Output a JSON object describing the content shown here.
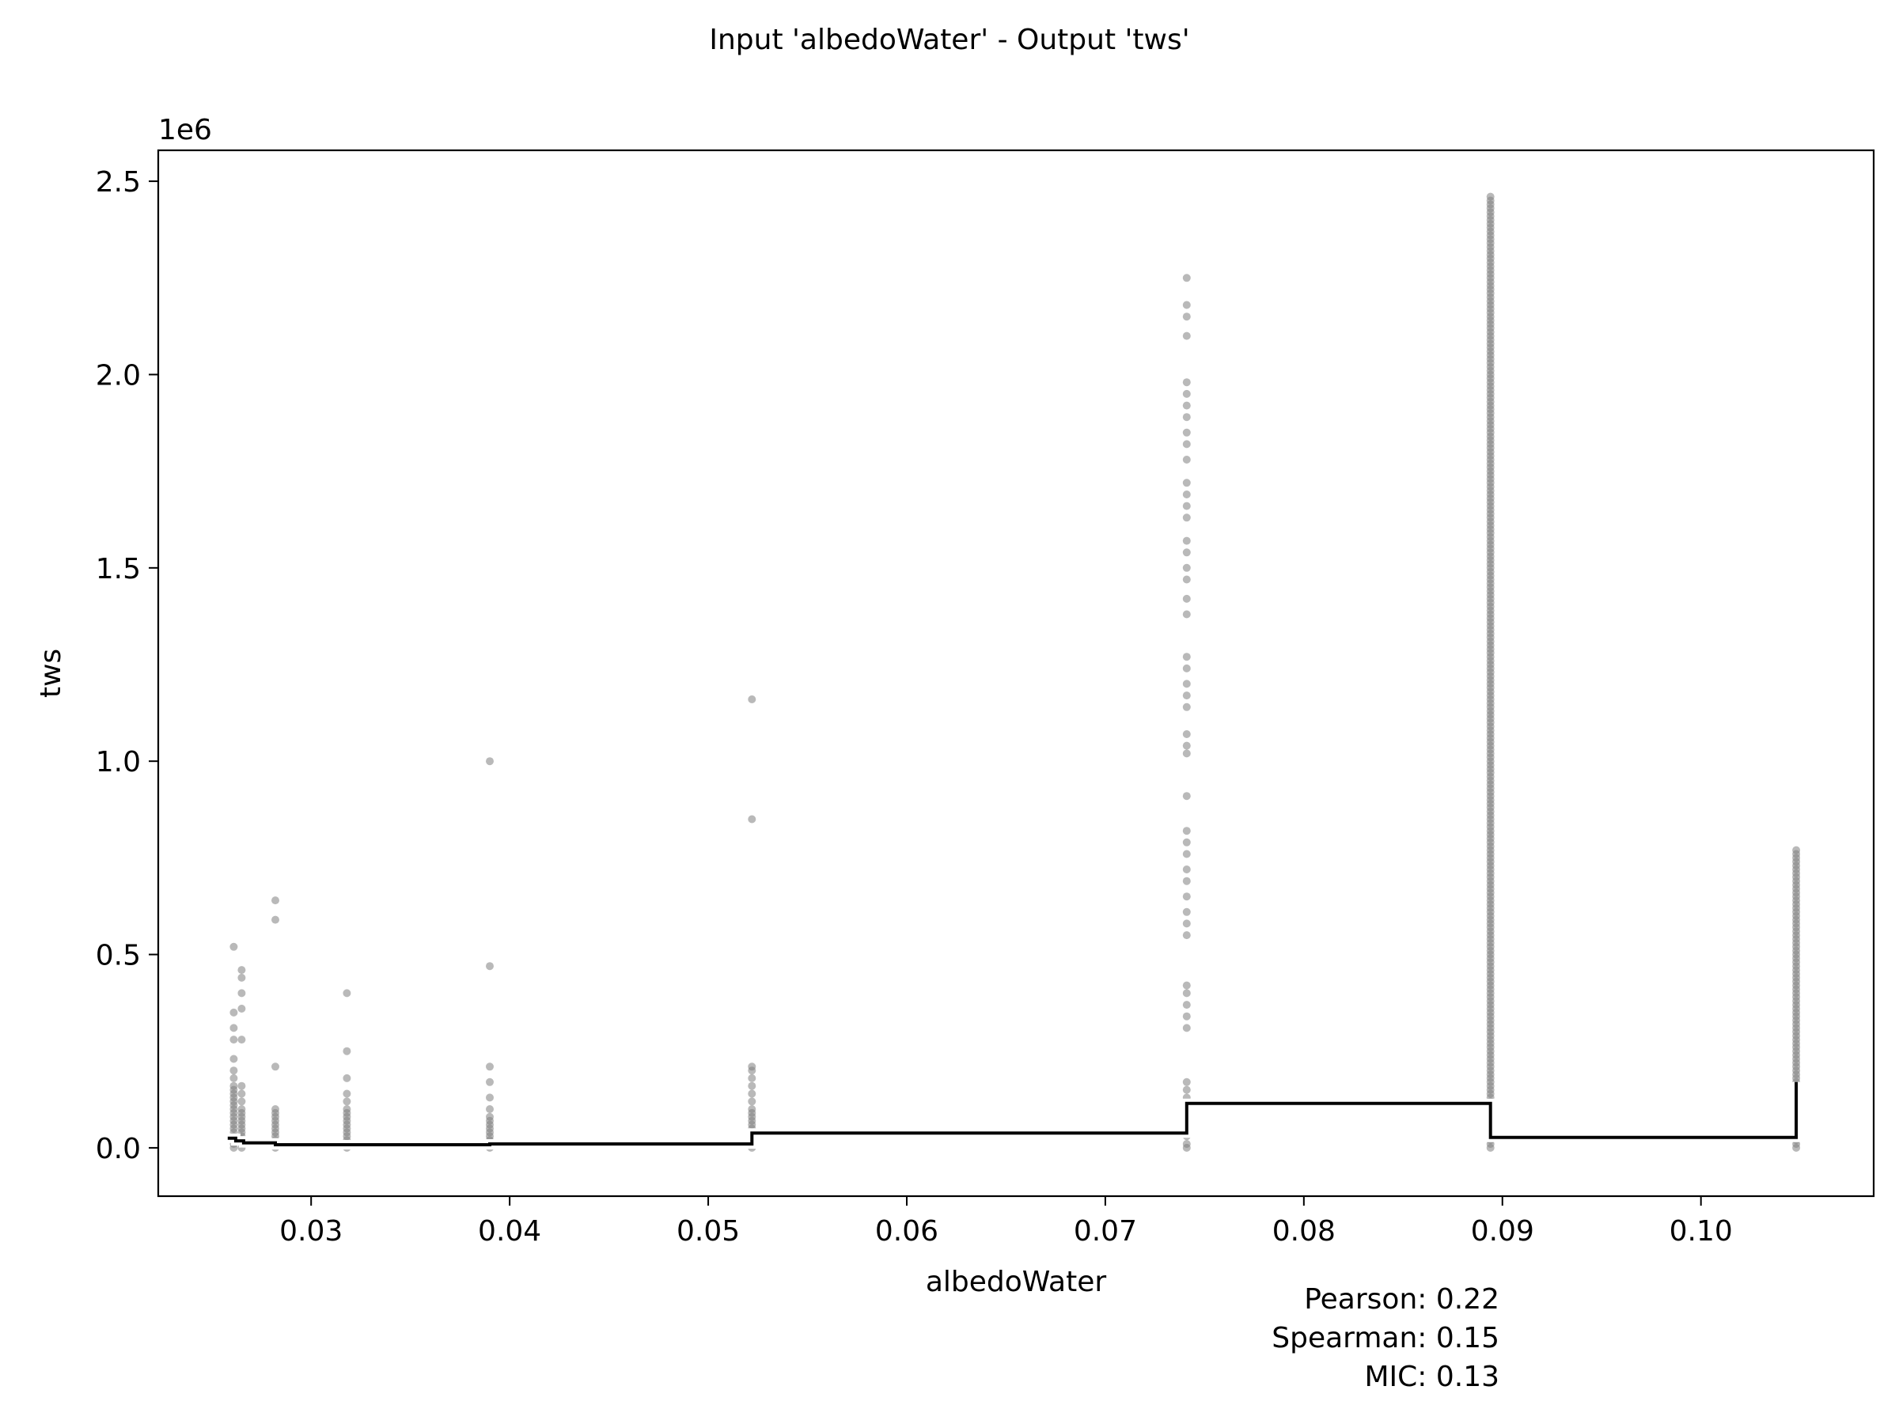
{
  "chart_data": {
    "type": "scatter",
    "title": "Input 'albedoWater' - Output 'tws'",
    "xlabel": "albedoWater",
    "ylabel": "tws",
    "y_offset_label": "1e6",
    "xlim": [
      0.0223,
      0.1087
    ],
    "ylim": [
      -0.125,
      2.58
    ],
    "x_ticks": [
      {
        "value": 0.03,
        "label": "0.03"
      },
      {
        "value": 0.04,
        "label": "0.04"
      },
      {
        "value": 0.05,
        "label": "0.05"
      },
      {
        "value": 0.06,
        "label": "0.06"
      },
      {
        "value": 0.07,
        "label": "0.07"
      },
      {
        "value": 0.08,
        "label": "0.08"
      },
      {
        "value": 0.09,
        "label": "0.09"
      },
      {
        "value": 0.1,
        "label": "0.10"
      }
    ],
    "y_ticks": [
      {
        "value": 0.0,
        "label": "0.0"
      },
      {
        "value": 0.5,
        "label": "0.5"
      },
      {
        "value": 1.0,
        "label": "1.0"
      },
      {
        "value": 1.5,
        "label": "1.5"
      },
      {
        "value": 2.0,
        "label": "2.0"
      },
      {
        "value": 2.5,
        "label": "2.5"
      }
    ],
    "grid": false,
    "point_color": "#7f7f7f",
    "line_color": "#000000",
    "scatter_columns": [
      {
        "x": 0.0261,
        "points": [
          0.52,
          0.35,
          0.31,
          0.28,
          0.23,
          0.2,
          0.18,
          0.16,
          0.15,
          0.14,
          0.13,
          0.12,
          0.11,
          0.1,
          0.09,
          0.08,
          0.07,
          0.06,
          0.05,
          0.04,
          0.03,
          0.02,
          0.01,
          0.0
        ]
      },
      {
        "x": 0.0265,
        "points": [
          0.46,
          0.44,
          0.4,
          0.36,
          0.28,
          0.16,
          0.14,
          0.12,
          0.1,
          0.09,
          0.08,
          0.07,
          0.06,
          0.05,
          0.04,
          0.03,
          0.02,
          0.01,
          0.0
        ]
      },
      {
        "x": 0.0282,
        "points": [
          0.64,
          0.59,
          0.21,
          0.1,
          0.09,
          0.08,
          0.07,
          0.06,
          0.05,
          0.04,
          0.03,
          0.02,
          0.01,
          0.0
        ]
      },
      {
        "x": 0.0318,
        "points": [
          0.4,
          0.25,
          0.18,
          0.14,
          0.12,
          0.1,
          0.09,
          0.08,
          0.07,
          0.06,
          0.05,
          0.04,
          0.03,
          0.02,
          0.01,
          0.0
        ]
      },
      {
        "x": 0.039,
        "points": [
          1.0,
          0.47,
          0.21,
          0.17,
          0.13,
          0.1,
          0.08,
          0.07,
          0.06,
          0.05,
          0.04,
          0.03,
          0.02,
          0.01,
          0.0
        ]
      },
      {
        "x": 0.0522,
        "points": [
          1.16,
          0.85,
          0.21,
          0.2,
          0.18,
          0.16,
          0.14,
          0.12,
          0.1,
          0.09,
          0.08,
          0.07,
          0.06,
          0.05,
          0.04,
          0.03,
          0.02,
          0.01,
          0.0
        ]
      },
      {
        "x": 0.0741,
        "points": [
          2.25,
          2.18,
          2.15,
          2.1,
          1.98,
          1.95,
          1.92,
          1.89,
          1.85,
          1.82,
          1.78,
          1.72,
          1.69,
          1.66,
          1.63,
          1.57,
          1.54,
          1.5,
          1.47,
          1.42,
          1.38,
          1.27,
          1.24,
          1.2,
          1.17,
          1.14,
          1.07,
          1.04,
          1.02,
          0.91,
          0.82,
          0.79,
          0.76,
          0.72,
          0.69,
          0.65,
          0.61,
          0.58,
          0.55,
          0.42,
          0.4,
          0.37,
          0.34,
          0.31,
          0.17,
          0.15,
          0.13,
          0.11,
          0.09,
          0.07,
          0.05,
          0.03,
          0.01,
          0.0
        ]
      }
    ],
    "scatter_bands": [
      {
        "x": 0.0894,
        "from": 0.0,
        "to": 2.46
      },
      {
        "x": 0.1048,
        "from": 0.0,
        "to": 0.77
      }
    ],
    "step_line": [
      {
        "x0": 0.0258,
        "x1": 0.0262,
        "y": 0.025
      },
      {
        "x0": 0.0262,
        "x1": 0.0266,
        "y": 0.018
      },
      {
        "x0": 0.0266,
        "x1": 0.0282,
        "y": 0.013
      },
      {
        "x0": 0.0282,
        "x1": 0.039,
        "y": 0.008
      },
      {
        "x0": 0.039,
        "x1": 0.0522,
        "y": 0.01
      },
      {
        "x0": 0.0522,
        "x1": 0.0741,
        "y": 0.038
      },
      {
        "x0": 0.0741,
        "x1": 0.0894,
        "y": 0.115
      },
      {
        "x0": 0.0894,
        "x1": 0.1048,
        "y": 0.027
      }
    ],
    "step_line_end": {
      "x": 0.1048,
      "y": 0.17
    },
    "stats": {
      "pearson": "Pearson: 0.22",
      "spearman": "Spearman: 0.15",
      "mic": "MIC: 0.13"
    }
  }
}
